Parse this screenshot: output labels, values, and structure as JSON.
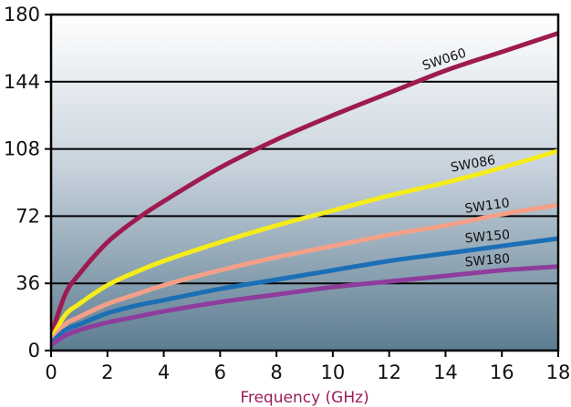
{
  "chart_data": {
    "type": "line",
    "title": "",
    "xlabel": "Frequency (GHz)",
    "ylabel": "",
    "xlim": [
      0,
      18
    ],
    "ylim": [
      0,
      180
    ],
    "xticks": [
      0,
      2,
      4,
      6,
      8,
      10,
      12,
      14,
      16,
      18
    ],
    "yticks": [
      0,
      36,
      72,
      108,
      144,
      180
    ],
    "grid": "horizontal",
    "background": "vertical gradient, white at top to slate blue at bottom",
    "x": [
      0,
      0.5,
      1,
      2,
      3,
      4,
      6,
      8,
      10,
      12,
      14,
      16,
      18
    ],
    "series": [
      {
        "name": "SW060",
        "color": "#9e1b4f",
        "values": [
          8,
          30,
          41,
          58,
          70,
          80,
          98,
          113,
          126,
          138,
          150,
          160,
          170
        ]
      },
      {
        "name": "SW086",
        "color": "#f5ec1a",
        "values": [
          6,
          19,
          25,
          35,
          42,
          48,
          58,
          67,
          75,
          83,
          90,
          98,
          107
        ]
      },
      {
        "name": "SW110",
        "color": "#f4a088",
        "values": [
          5,
          14,
          18,
          25,
          30,
          35,
          43,
          50,
          56,
          62,
          67,
          73,
          78
        ]
      },
      {
        "name": "SW150",
        "color": "#1b6fb5",
        "values": [
          4,
          11,
          14,
          20,
          24,
          27,
          33,
          38,
          43,
          48,
          52,
          56,
          60
        ]
      },
      {
        "name": "SW180",
        "color": "#8e3d9c",
        "values": [
          3,
          8,
          11,
          15,
          18,
          21,
          26,
          30,
          34,
          37,
          40,
          43,
          45
        ]
      }
    ]
  }
}
